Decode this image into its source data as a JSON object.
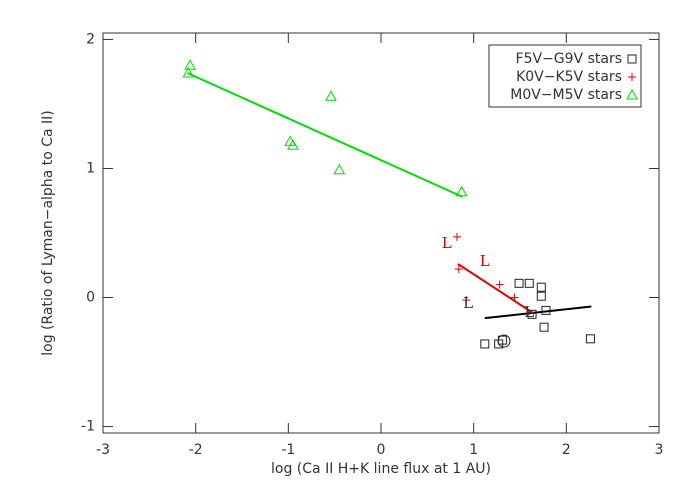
{
  "chart_data": {
    "type": "scatter",
    "xlabel": "log (Ca II H+K line flux at 1 AU)",
    "ylabel": "log (Ratio of Lyman−alpha to Ca II)",
    "xlim": [
      -3,
      3
    ],
    "ylim": [
      -1.05,
      2.05
    ],
    "xticks": [
      -3,
      -2,
      -1,
      0,
      1,
      2,
      3
    ],
    "yticks": [
      -1,
      0,
      1,
      2
    ],
    "legend": "upper right",
    "series": [
      {
        "name": "F5V−G9V stars",
        "color": "#222222",
        "marker": "square",
        "x": [
          1.49,
          1.6,
          1.73,
          1.73,
          1.78,
          1.76,
          1.12,
          1.27,
          2.26,
          1.63,
          1.31
        ],
        "values": [
          0.11,
          0.11,
          0.08,
          0.01,
          -0.1,
          -0.23,
          -0.36,
          -0.36,
          -0.32,
          -0.13,
          -0.33
        ]
      },
      {
        "name": "K0V−K5V stars",
        "color": "#e00000",
        "marker": "plus",
        "x": [
          0.82,
          0.84,
          1.28,
          1.44,
          0.92
        ],
        "values": [
          0.47,
          0.22,
          0.1,
          0.0,
          -0.02
        ]
      },
      {
        "name": "M0V−M5V stars",
        "color": "#00dd00",
        "marker": "triangle",
        "x": [
          -2.06,
          -2.08,
          -0.54,
          -0.98,
          -0.95,
          -0.45,
          0.87
        ],
        "values": [
          1.8,
          1.74,
          1.56,
          1.21,
          1.18,
          0.99,
          0.82
        ]
      }
    ],
    "fits": [
      {
        "color": "#000000",
        "x": [
          1.12,
          2.27
        ],
        "values": [
          -0.16,
          -0.07
        ]
      },
      {
        "color": "#e00000",
        "x": [
          0.83,
          1.64
        ],
        "values": [
          0.26,
          -0.12
        ]
      },
      {
        "color": "#00dd00",
        "x": [
          -2.09,
          0.88
        ],
        "values": [
          1.74,
          0.78
        ]
      }
    ],
    "annotations": [
      {
        "text": "L",
        "x": 0.71,
        "y": 0.415,
        "color": "#e00000"
      },
      {
        "text": "L",
        "x": 1.12,
        "y": 0.275,
        "color": "#e00000"
      },
      {
        "text": "L",
        "x": 0.94,
        "y": -0.05,
        "color": "#333333"
      },
      {
        "text": "L",
        "x": 1.6,
        "y": -0.12,
        "color": "#333333"
      }
    ]
  }
}
